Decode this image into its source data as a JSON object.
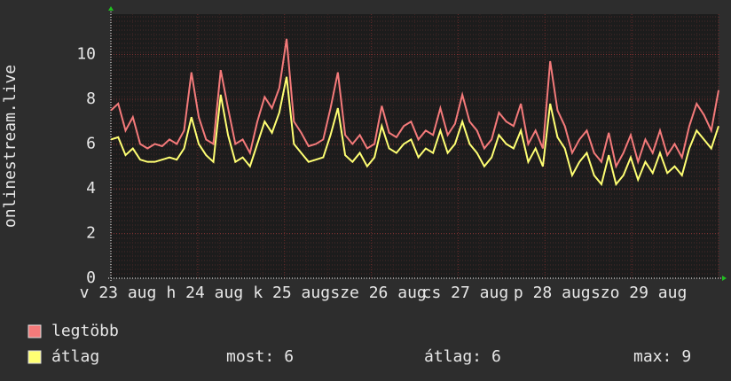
{
  "chart_data": {
    "type": "line",
    "y_label": "onlinestream.live",
    "x_labels": [
      "v 23 aug",
      "h 24 aug",
      "k 25 aug",
      "sze 26 aug",
      "cs 27 aug",
      "p 28 aug",
      "szo 29 aug"
    ],
    "ylim": [
      0,
      11.8
    ],
    "yticks": [
      0,
      2,
      4,
      6,
      8,
      10
    ],
    "grid": true,
    "series": [
      {
        "name": "legtöbb",
        "color": "#f47a7a",
        "values": [
          7.5,
          7.8,
          6.6,
          7.2,
          6.0,
          5.8,
          6.0,
          5.9,
          6.2,
          6.0,
          6.6,
          9.2,
          7.2,
          6.2,
          6.0,
          9.3,
          7.6,
          6.0,
          6.2,
          5.6,
          7.0,
          8.1,
          7.6,
          8.5,
          10.7,
          7.0,
          6.5,
          5.9,
          6.0,
          6.2,
          7.6,
          9.2,
          6.4,
          6.0,
          6.4,
          5.8,
          6.0,
          7.7,
          6.5,
          6.3,
          6.8,
          7.0,
          6.2,
          6.6,
          6.4,
          7.6,
          6.4,
          6.9,
          8.2,
          7.0,
          6.6,
          5.8,
          6.2,
          7.4,
          7.0,
          6.8,
          7.8,
          6.0,
          6.6,
          5.8,
          9.7,
          7.5,
          6.8,
          5.6,
          6.2,
          6.6,
          5.6,
          5.2,
          6.5,
          5.0,
          5.6,
          6.4,
          5.2,
          6.2,
          5.6,
          6.6,
          5.5,
          6.0,
          5.4,
          6.8,
          7.8,
          7.3,
          6.6,
          8.4
        ]
      },
      {
        "name": "átlag",
        "color": "#ffff73",
        "values": [
          6.2,
          6.3,
          5.5,
          5.8,
          5.3,
          5.2,
          5.2,
          5.3,
          5.4,
          5.3,
          5.8,
          7.2,
          6.0,
          5.5,
          5.2,
          8.2,
          6.4,
          5.2,
          5.4,
          5.0,
          6.0,
          7.0,
          6.5,
          7.4,
          9.0,
          6.0,
          5.6,
          5.2,
          5.3,
          5.4,
          6.4,
          7.6,
          5.5,
          5.2,
          5.6,
          5.0,
          5.4,
          6.8,
          5.8,
          5.6,
          6.0,
          6.2,
          5.4,
          5.8,
          5.6,
          6.6,
          5.6,
          6.0,
          7.0,
          6.0,
          5.6,
          5.0,
          5.4,
          6.4,
          6.0,
          5.8,
          6.6,
          5.2,
          5.8,
          5.0,
          7.8,
          6.3,
          5.8,
          4.6,
          5.2,
          5.6,
          4.6,
          4.2,
          5.5,
          4.2,
          4.6,
          5.4,
          4.4,
          5.2,
          4.7,
          5.6,
          4.7,
          5.0,
          4.6,
          5.8,
          6.6,
          6.2,
          5.8,
          6.8
        ]
      }
    ],
    "stats": [
      {
        "label": "most:",
        "value": 6
      },
      {
        "label": "átlag:",
        "value": 6
      },
      {
        "label": "max:",
        "value": 9
      }
    ]
  }
}
